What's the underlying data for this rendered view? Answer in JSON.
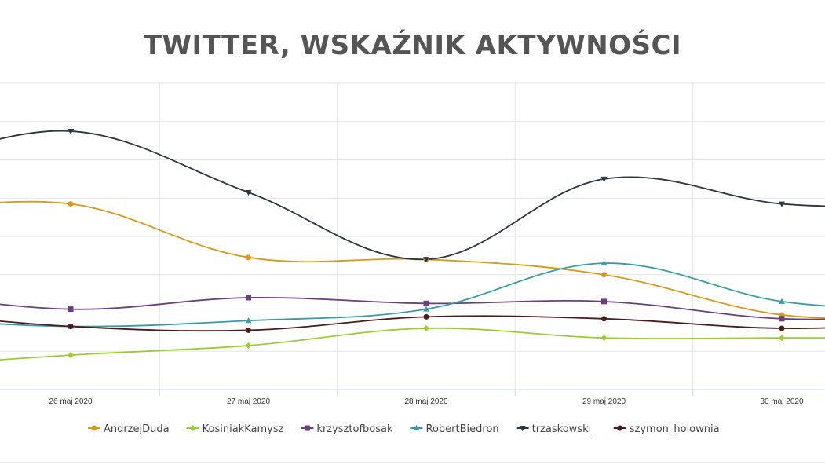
{
  "title": "TWITTER, WSKAŹNIK AKTYWNOŚCI",
  "chart_data": {
    "type": "line",
    "title": "TWITTER, WSKAŹNIK AKTYWNOŚCI",
    "categories": [
      "26 maj 2020",
      "27 maj 2020",
      "28 maj 2020",
      "29 maj 2020",
      "30 maj 2020"
    ],
    "y_visible_range": [
      0,
      8
    ],
    "grid": true,
    "legend_position": "bottom",
    "series": [
      {
        "name": "AndrzejDuda",
        "marker": "circle",
        "color": "#d89a1e",
        "values": [
          4.85,
          3.45,
          3.4,
          3.0,
          1.95
        ],
        "left_edge": 4.7,
        "right_edge": 1.95
      },
      {
        "name": "KosiniakKamysz",
        "marker": "diamond",
        "color": "#9acd32",
        "values": [
          0.9,
          1.15,
          1.6,
          1.35,
          1.35
        ],
        "left_edge": 0.7,
        "right_edge": 1.35
      },
      {
        "name": "krzysztofbosak",
        "marker": "square",
        "color": "#6b3e7e",
        "values": [
          2.1,
          2.4,
          2.25,
          2.3,
          1.85
        ],
        "left_edge": 2.4,
        "right_edge": 1.95
      },
      {
        "name": "RobertBiedron",
        "marker": "triangle-up",
        "color": "#3a9ba8",
        "values": [
          1.65,
          1.8,
          2.1,
          3.3,
          2.3
        ],
        "left_edge": 1.8,
        "right_edge": 2.1
      },
      {
        "name": "trzaskowski_",
        "marker": "triangle-down",
        "color": "#2c3542",
        "values": [
          6.75,
          5.15,
          3.4,
          5.5,
          4.85
        ],
        "left_edge": 6.1,
        "right_edge": 4.8
      },
      {
        "name": "szymon_holownia",
        "marker": "circle",
        "color": "#4a1c1c",
        "values": [
          1.65,
          1.55,
          1.9,
          1.85,
          1.6
        ],
        "left_edge": 1.9,
        "right_edge": 1.75
      }
    ]
  }
}
